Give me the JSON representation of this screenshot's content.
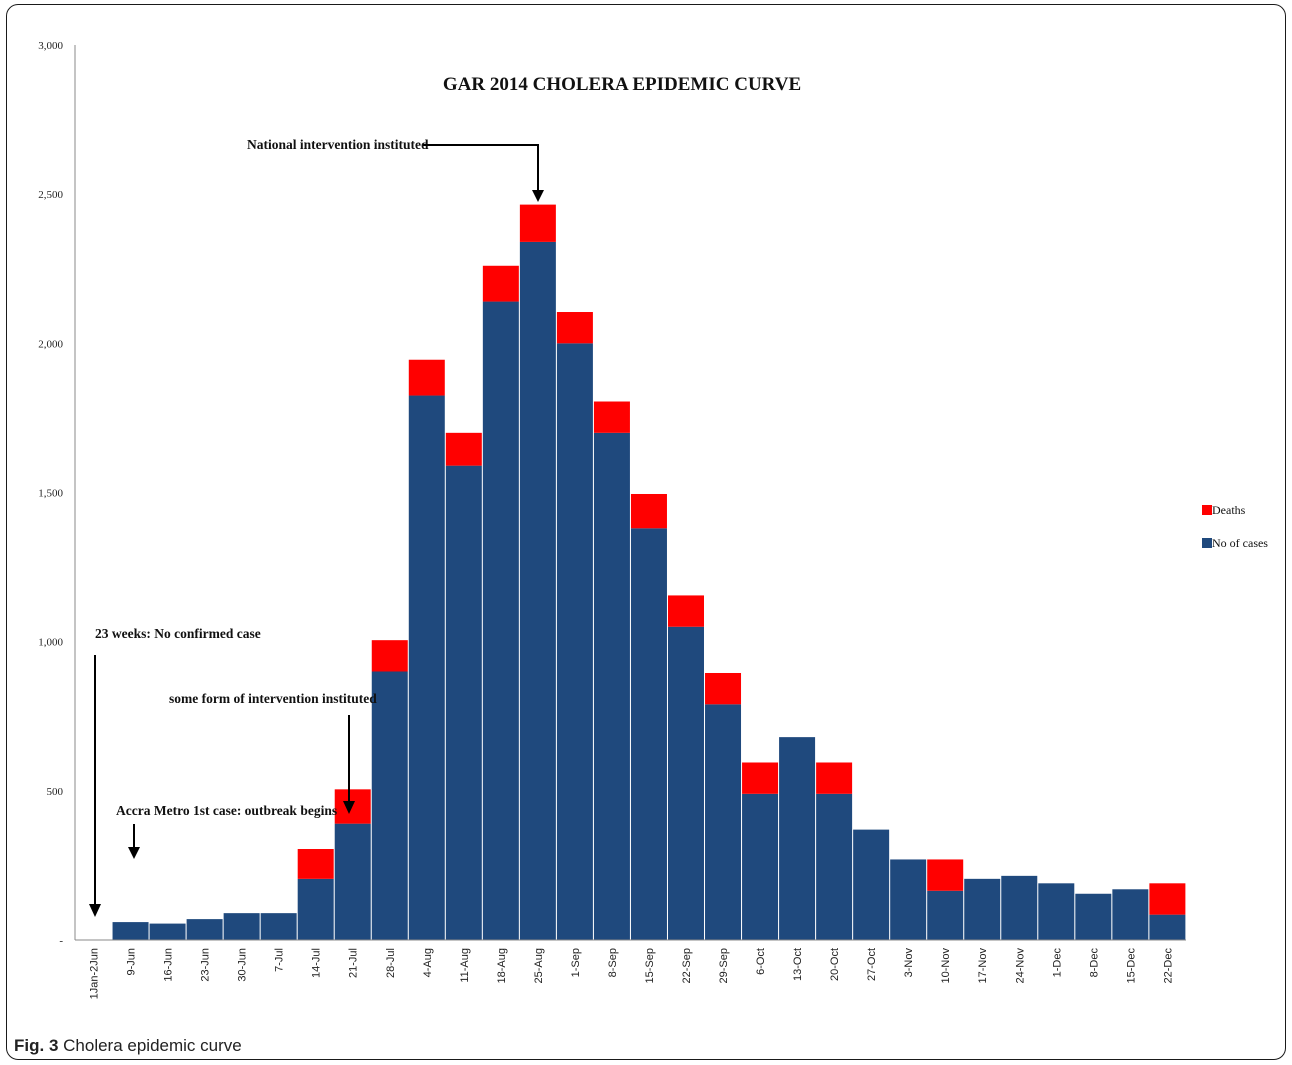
{
  "caption": {
    "label": "Fig. 3",
    "text": "Cholera epidemic curve"
  },
  "colors": {
    "cases": "#1f497d",
    "deaths": "#ff0000",
    "axis": "#888888",
    "arrow": "#000000"
  },
  "chart_data": {
    "type": "bar",
    "stacked": true,
    "title": "GAR 2014 CHOLERA EPIDEMIC CURVE",
    "xlabel": "",
    "ylabel": "",
    "ylim": [
      0,
      3000
    ],
    "yticks": [
      0,
      500,
      1000,
      1500,
      2000,
      2500,
      3000
    ],
    "ytick_labels": [
      "-",
      "500",
      "1,000",
      "1,500",
      "2,000",
      "2,500",
      "3,000"
    ],
    "grid": false,
    "legend_position": "right",
    "categories": [
      "1Jan-2Jun",
      "9-Jun",
      "16-Jun",
      "23-Jun",
      "30-Jun",
      "7-Jul",
      "14-Jul",
      "21-Jul",
      "28-Jul",
      "4-Aug",
      "11-Aug",
      "18-Aug",
      "25-Aug",
      "1-Sep",
      "8-Sep",
      "15-Sep",
      "22-Sep",
      "29-Sep",
      "6-Oct",
      "13-Oct",
      "20-Oct",
      "27-Oct",
      "3-Nov",
      "10-Nov",
      "17-Nov",
      "24-Nov",
      "1-Dec",
      "8-Dec",
      "15-Dec",
      "22-Dec"
    ],
    "series": [
      {
        "name": "No of cases",
        "color": "#1f497d",
        "values": [
          0,
          60,
          55,
          70,
          90,
          90,
          205,
          390,
          900,
          1825,
          1590,
          2140,
          2340,
          2000,
          1700,
          1380,
          1050,
          790,
          490,
          680,
          490,
          370,
          270,
          165,
          205,
          215,
          190,
          155,
          170,
          85
        ]
      },
      {
        "name": "Deaths",
        "color": "#ff0000",
        "values": [
          0,
          0,
          0,
          0,
          0,
          0,
          100,
          115,
          105,
          120,
          110,
          120,
          125,
          105,
          105,
          115,
          105,
          105,
          105,
          0,
          105,
          0,
          0,
          105,
          0,
          0,
          0,
          0,
          0,
          105
        ]
      }
    ],
    "annotations": [
      {
        "text": "GAR 2014 CHOLERA EPIDEMIC CURVE"
      },
      {
        "text": "National intervention instituted",
        "target": "25-Aug"
      },
      {
        "text": "23 weeks: No confirmed case",
        "target": "1Jan-2Jun"
      },
      {
        "text": "some form of intervention instituted",
        "target": "21-Jul"
      },
      {
        "text": "Accra Metro 1st case: outbreak begins",
        "target": "9-Jun"
      }
    ]
  }
}
